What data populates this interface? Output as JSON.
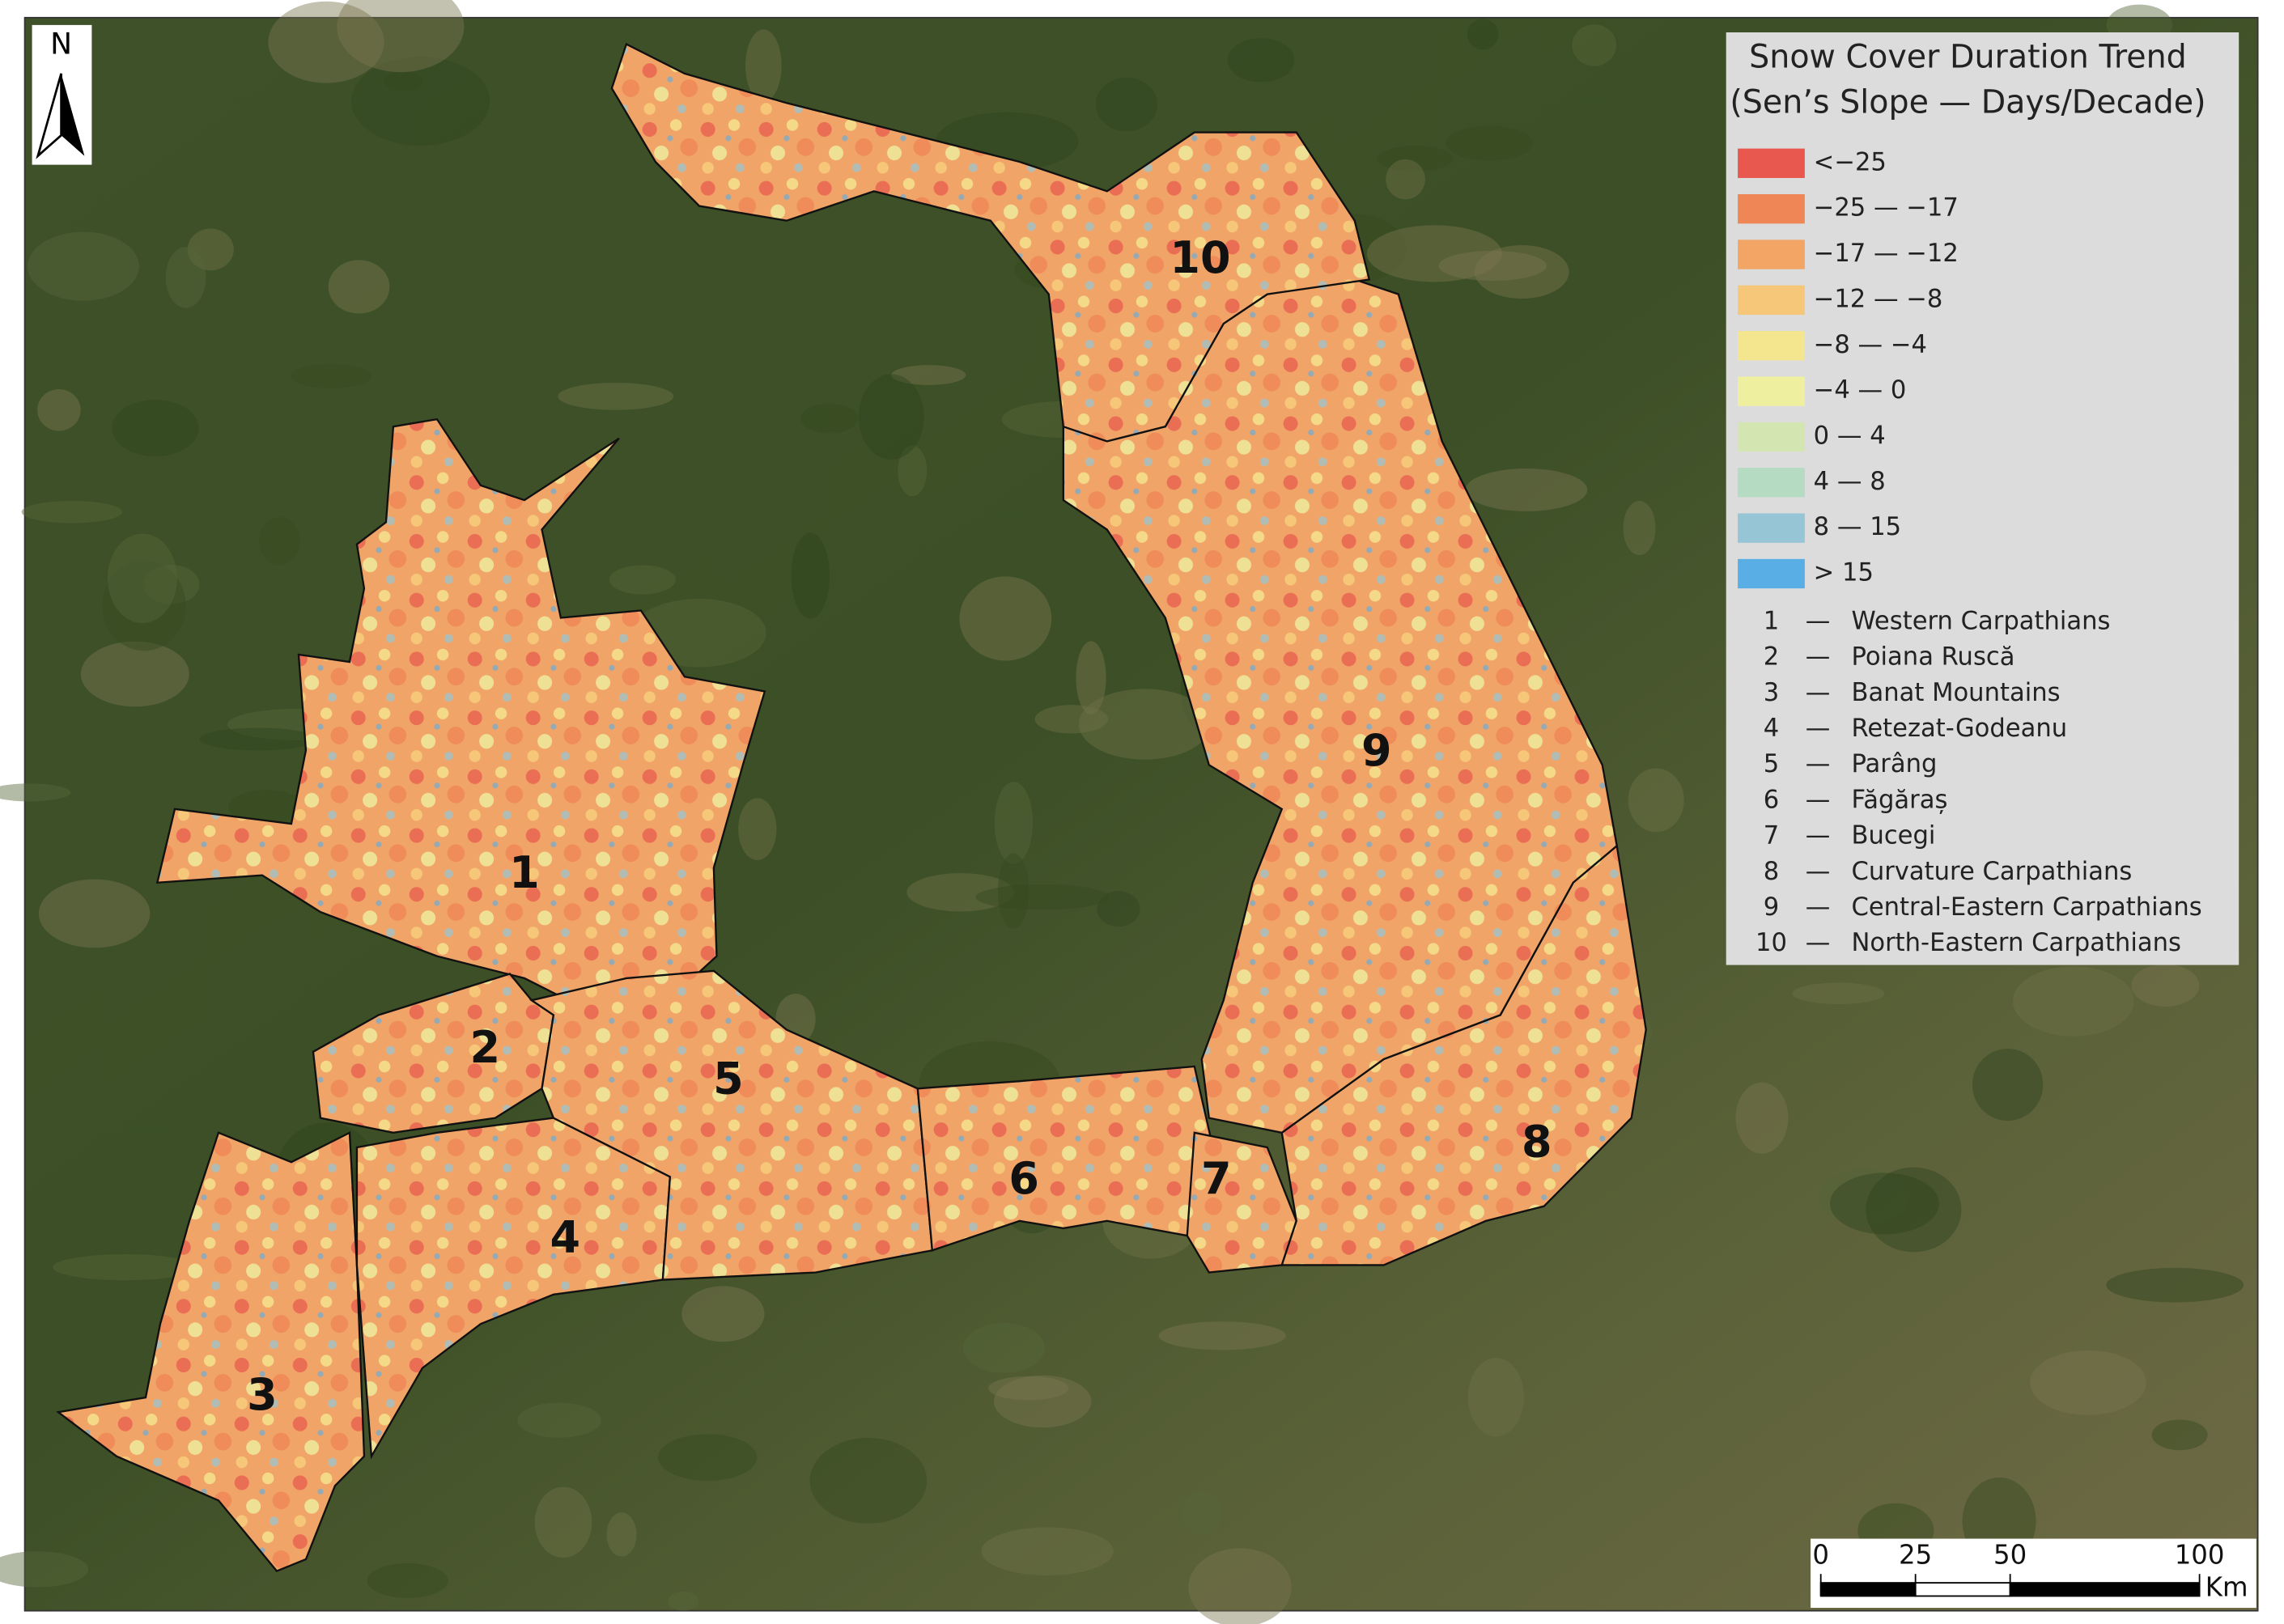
{
  "legend": {
    "title": [
      "Snow Cover Duration Trend",
      "(Sen’s  Slope — Days/Decade)"
    ],
    "classes": [
      {
        "label": "<−25",
        "color": "#e8584e"
      },
      {
        "label": "−25 — −17",
        "color": "#ef8656"
      },
      {
        "label": "−17 — −12",
        "color": "#f3a566"
      },
      {
        "label": "−12 — −8",
        "color": "#f6c779"
      },
      {
        "label": "−8 —  −4",
        "color": "#f4e58f"
      },
      {
        "label": "−4 — 0",
        "color": "#eef0a0"
      },
      {
        "label": "0 — 4",
        "color": "#d3e6b2"
      },
      {
        "label": "4 — 8",
        "color": "#b5dbc2"
      },
      {
        "label": "8 — 15",
        "color": "#96c6d6"
      },
      {
        "label": "> 15",
        "color": "#5aaee6"
      }
    ],
    "separator": "—",
    "regions": [
      {
        "number": "1",
        "name": "Western Carpathians"
      },
      {
        "number": "2",
        "name": "Poiana Ruscă"
      },
      {
        "number": "3",
        "name": "Banat Mountains"
      },
      {
        "number": "4",
        "name": "Retezat-Godeanu"
      },
      {
        "number": "5",
        "name": "Parâng"
      },
      {
        "number": "6",
        "name": "Făgăraș"
      },
      {
        "number": "7",
        "name": "Bucegi"
      },
      {
        "number": "8",
        "name": "Curvature Carpathians"
      },
      {
        "number": "9",
        "name": "Central-Eastern Carpathians"
      },
      {
        "number": "10",
        "name": "North-Eastern Carpathians"
      }
    ]
  },
  "north_arrow": {
    "label": "N"
  },
  "scale_bar": {
    "ticks": [
      0,
      25,
      50,
      100
    ],
    "unit": "Km"
  }
}
